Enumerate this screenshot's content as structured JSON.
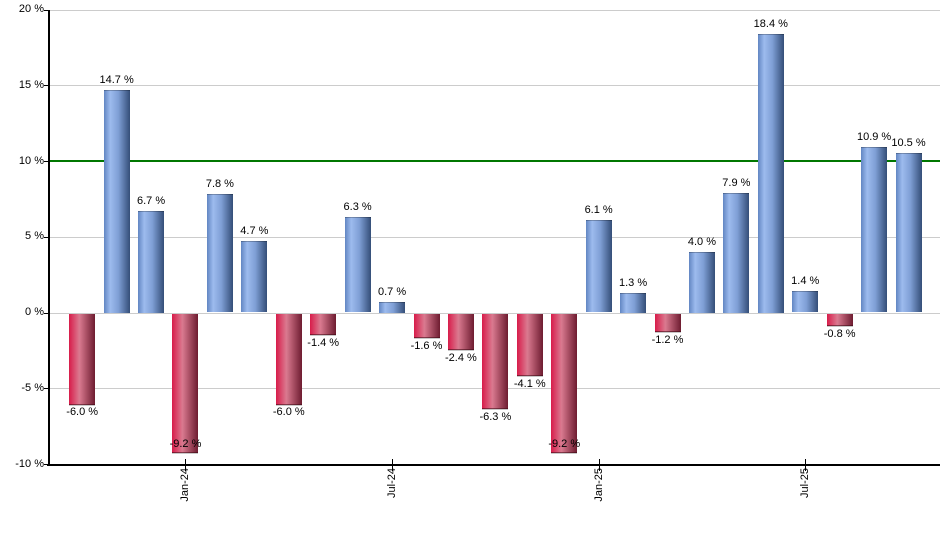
{
  "chart_data": {
    "type": "bar",
    "title": "",
    "unit_suffix": " %",
    "values": [
      -6.0,
      14.7,
      6.7,
      -9.2,
      7.8,
      4.7,
      -6.0,
      -1.4,
      6.3,
      0.7,
      -1.6,
      -2.4,
      -6.3,
      -4.1,
      -9.2,
      6.1,
      1.3,
      -1.2,
      4.0,
      7.9,
      18.4,
      1.4,
      -0.8,
      10.9,
      10.5
    ],
    "bar_labels": [
      "-6.0 %",
      "14.7 %",
      "6.7 %",
      "-9.2 %",
      "7.8 %",
      "4.7 %",
      "-6.0 %",
      "-1.4 %",
      "6.3 %",
      "0.7 %",
      "-1.6 %",
      "-2.4 %",
      "-6.3 %",
      "-4.1 %",
      "-9.2 %",
      "6.1 %",
      "1.3 %",
      "-1.2 %",
      "4.0 %",
      "7.9 %",
      "18.4 %",
      "1.4 %",
      "-0.8 %",
      "10.9 %",
      "10.5 %"
    ],
    "ylim": [
      -10,
      20
    ],
    "yticks": [
      {
        "value": 20,
        "label": "20 %"
      },
      {
        "value": 15,
        "label": "15 %"
      },
      {
        "value": 10,
        "label": "10 %"
      },
      {
        "value": 5,
        "label": "5 %"
      },
      {
        "value": 0,
        "label": "0 %"
      },
      {
        "value": -5,
        "label": "-5 %"
      },
      {
        "value": -10,
        "label": "-10 %"
      }
    ],
    "xticks": [
      {
        "bar_index": 3,
        "label": "Jan-24"
      },
      {
        "bar_index": 9,
        "label": "Jul-24"
      },
      {
        "bar_index": 15,
        "label": "Jan-25"
      },
      {
        "bar_index": 21,
        "label": "Jul-25"
      }
    ],
    "threshold_line": {
      "value": 10,
      "color": "#007700"
    },
    "grid": true,
    "legend": null,
    "colors": {
      "positive_bar_gradient": [
        "#6286c2",
        "#9dbbee",
        "#7f9fd6",
        "#344e78"
      ],
      "negative_bar_gradient": [
        "#d81c4a",
        "#da7a90",
        "#6e1c30"
      ],
      "grid_line": "#cccccc",
      "axis_line": "#000000",
      "label_text": "#000000",
      "background": "#ffffff"
    }
  }
}
